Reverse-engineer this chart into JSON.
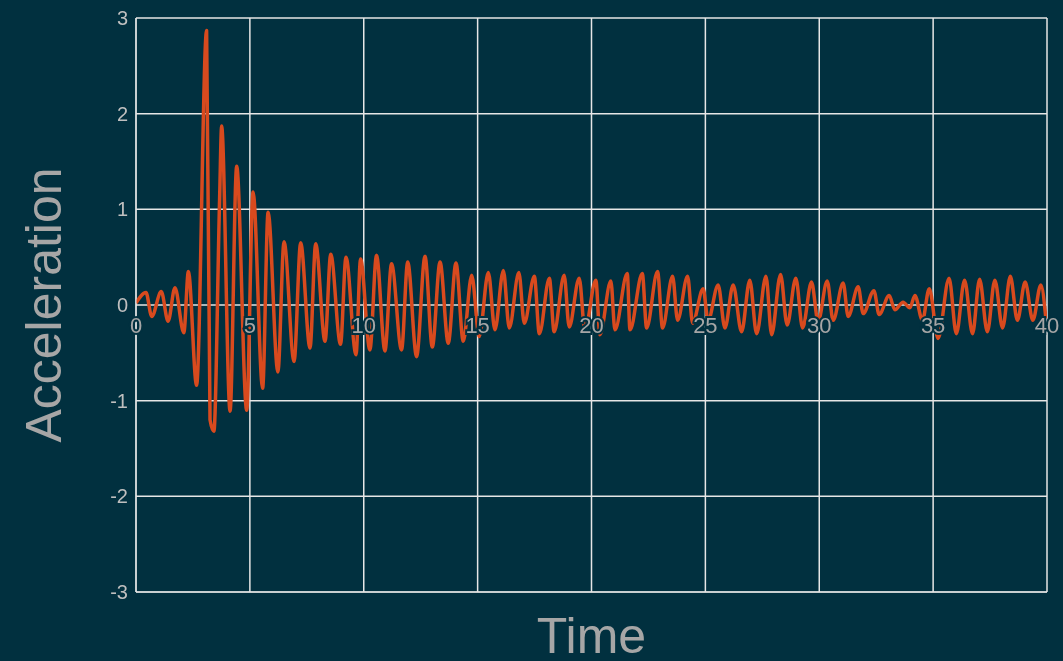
{
  "chart_data": {
    "type": "line",
    "xlabel": "Time",
    "ylabel": "Acceleration",
    "color": "#d84a1e",
    "x": [
      0,
      0.44,
      0.69,
      1.11,
      1.41,
      1.71,
      2.1,
      2.3,
      2.66,
      3.1,
      3.25,
      3.42,
      3.67,
      3.76,
      4.13,
      4.42,
      4.86,
      5.14,
      5.56,
      5.8,
      6.23,
      6.5,
      6.94,
      7.23,
      7.64,
      7.89,
      8.3,
      8.55,
      8.98,
      9.22,
      9.66,
      9.86,
      10.27,
      10.56,
      10.93,
      11.22,
      11.66,
      11.93,
      12.32,
      12.69,
      13.01,
      13.35,
      13.71,
      14.05,
      14.37,
      14.74,
      15.07,
      15.47,
      15.76,
      16.13,
      16.39,
      16.81,
      17.05,
      17.49,
      17.71,
      18.15,
      18.36,
      18.8,
      19.02,
      19.46,
      19.71,
      20.19,
      20.37,
      20.85,
      21.03,
      21.57,
      21.69,
      22.23,
      22.42,
      22.9,
      23.12,
      23.56,
      23.78,
      24.22,
      24.44,
      24.9,
      25.12,
      25.56,
      25.86,
      26.22,
      26.59,
      26.95,
      27.25,
      27.66,
      27.91,
      28.3,
      28.59,
      28.97,
      29.27,
      29.66,
      29.95,
      30.35,
      30.61,
      31.05,
      31.27,
      31.71,
      31.93,
      32.4,
      32.63,
      33.07,
      33.32,
      33.68,
      33.98,
      34.2,
      34.53,
      34.83,
      35.22,
      35.7,
      36.02,
      36.38,
      36.73,
      37.04,
      37.38,
      37.71,
      38.05,
      38.39,
      38.7,
      39.04,
      39.38,
      39.73,
      39.95
    ],
    "values": [
      0.02,
      0.13,
      -0.12,
      0.14,
      -0.17,
      0.18,
      -0.29,
      0.35,
      -0.84,
      2.87,
      -1.2,
      -1.32,
      1.1,
      1.87,
      -1.11,
      1.45,
      -1.1,
      1.18,
      -0.87,
      0.97,
      -0.7,
      0.66,
      -0.59,
      0.65,
      -0.45,
      0.64,
      -0.38,
      0.53,
      -0.41,
      0.5,
      -0.52,
      0.48,
      -0.47,
      0.52,
      -0.48,
      0.43,
      -0.47,
      0.45,
      -0.54,
      0.51,
      -0.44,
      0.45,
      -0.4,
      0.44,
      -0.38,
      0.31,
      -0.33,
      0.34,
      -0.26,
      0.36,
      -0.24,
      0.34,
      -0.19,
      0.3,
      -0.3,
      0.28,
      -0.28,
      0.31,
      -0.23,
      0.28,
      -0.26,
      0.26,
      -0.31,
      0.25,
      -0.26,
      0.33,
      -0.26,
      0.33,
      -0.24,
      0.35,
      -0.24,
      0.3,
      -0.16,
      0.3,
      -0.19,
      0.17,
      -0.16,
      0.21,
      -0.24,
      0.21,
      -0.28,
      0.26,
      -0.3,
      0.3,
      -0.31,
      0.32,
      -0.21,
      0.28,
      -0.24,
      0.24,
      -0.17,
      0.25,
      -0.16,
      0.23,
      -0.12,
      0.19,
      -0.09,
      0.15,
      -0.1,
      0.1,
      -0.05,
      0.03,
      -0.03,
      0.1,
      -0.16,
      0.17,
      -0.35,
      0.28,
      -0.3,
      0.26,
      -0.3,
      0.27,
      -0.28,
      0.26,
      -0.24,
      0.3,
      -0.16,
      0.24,
      -0.16,
      0.21,
      -0.14
    ],
    "xlim": [
      0,
      40
    ],
    "xticks": [
      0,
      5,
      10,
      15,
      20,
      25,
      30,
      35,
      40
    ],
    "ylim": [
      -3,
      3
    ],
    "yticks": [
      -3,
      -2,
      -1,
      0,
      1,
      2,
      3
    ],
    "grid": true
  }
}
